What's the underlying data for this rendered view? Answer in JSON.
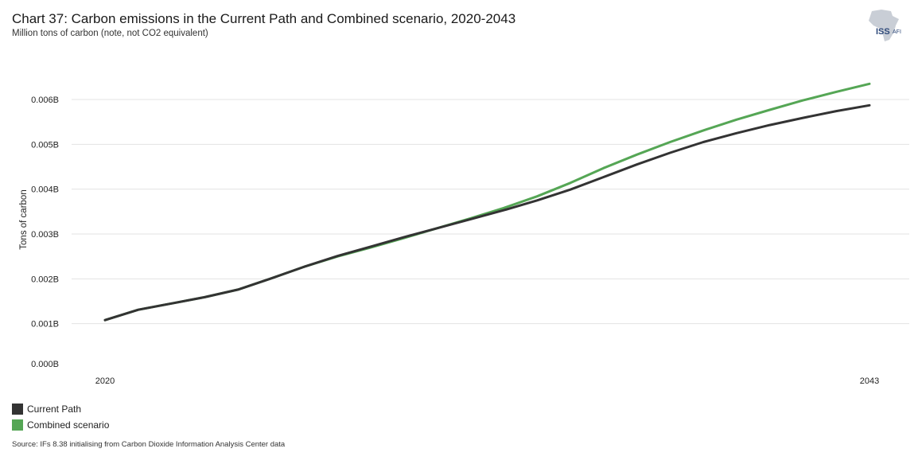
{
  "header": {
    "title": "Chart 37: Carbon emissions in the Current Path and Combined scenario, 2020-2043",
    "subtitle": "Million tons of carbon (note, not CO2 equivalent)"
  },
  "logo": {
    "primary": "ISS",
    "secondary": "AFI"
  },
  "source": "Source: IFs 8.38 initialising from Carbon Dioxide Information Analysis Center data",
  "colors": {
    "current_path": "#333333",
    "combined": "#55a655",
    "grid": "#e3e3e3"
  },
  "chart_data": {
    "type": "line",
    "title": "Chart 37: Carbon emissions in the Current Path and Combined scenario, 2020-2043",
    "xlabel": "",
    "ylabel": "Tons of carbon",
    "x": [
      2020,
      2021,
      2022,
      2023,
      2024,
      2025,
      2026,
      2027,
      2028,
      2029,
      2030,
      2031,
      2032,
      2033,
      2034,
      2035,
      2036,
      2037,
      2038,
      2039,
      2040,
      2041,
      2042,
      2043
    ],
    "xtick_labels": [
      "2020",
      "2043"
    ],
    "xtick_values": [
      2020,
      2043
    ],
    "ylim": [
      0,
      0.006
    ],
    "yticks": [
      0,
      0.001,
      0.002,
      0.003,
      0.004,
      0.005,
      0.006
    ],
    "ytick_labels": [
      "0.000B",
      "0.001B",
      "0.002B",
      "0.003B",
      "0.004B",
      "0.005B",
      "0.006B"
    ],
    "legend_position": "bottom-left",
    "series": [
      {
        "name": "Current Path",
        "color": "#333333",
        "values": [
          0.00108,
          0.00131,
          0.00145,
          0.00159,
          0.00176,
          0.00201,
          0.00227,
          0.00251,
          0.00272,
          0.00293,
          0.00313,
          0.00333,
          0.00353,
          0.00375,
          0.00399,
          0.00427,
          0.00455,
          0.00481,
          0.00505,
          0.00525,
          0.00543,
          0.00559,
          0.00574,
          0.00587
        ]
      },
      {
        "name": "Combined scenario",
        "color": "#55a655",
        "values": [
          0.00108,
          0.00131,
          0.00145,
          0.00159,
          0.00176,
          0.00201,
          0.00227,
          0.0025,
          0.0027,
          0.00291,
          0.00313,
          0.00335,
          0.00358,
          0.00384,
          0.00414,
          0.00447,
          0.00477,
          0.00505,
          0.00531,
          0.00555,
          0.00577,
          0.00598,
          0.00617,
          0.00635
        ]
      }
    ]
  }
}
